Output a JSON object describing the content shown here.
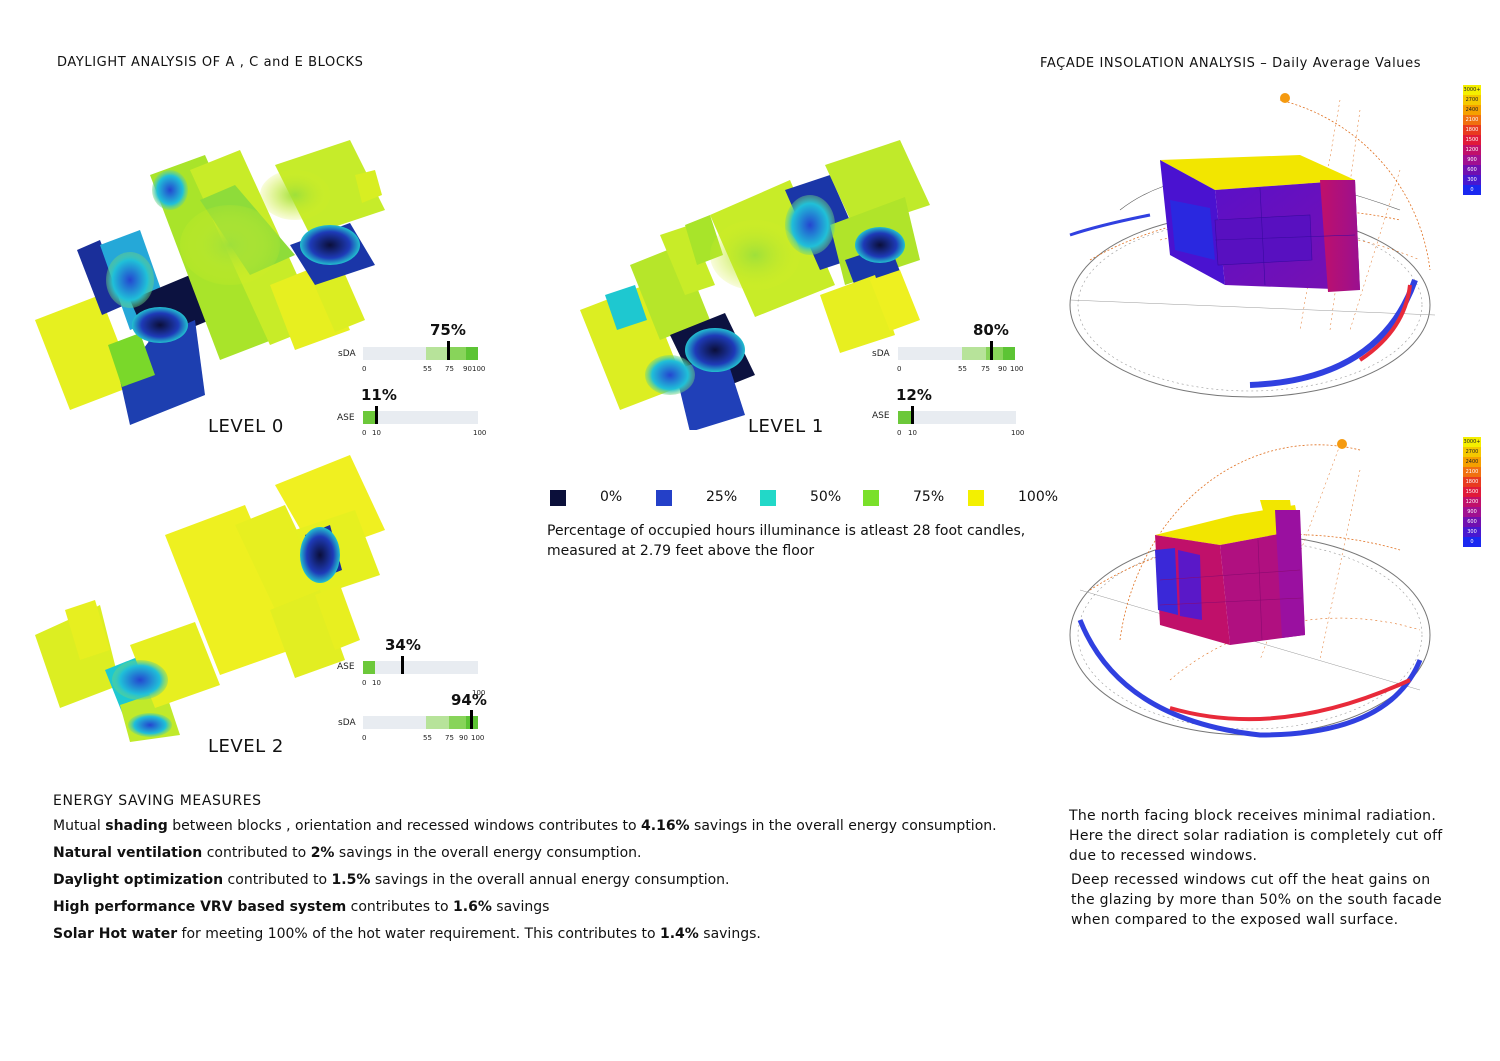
{
  "header": {
    "left_title": "DAYLIGHT ANALYSIS OF A , C and E BLOCKS",
    "right_title": "FAÇADE INSOLATION ANALYSIS – Daily Average Values"
  },
  "levels": [
    {
      "name": "LEVEL 0",
      "sda": {
        "label": "sDA",
        "value_text": "75%",
        "value": 75,
        "ticks": [
          "0",
          "55",
          "75",
          "90",
          "100"
        ]
      },
      "ase": {
        "label": "ASE",
        "value_text": "11%",
        "value": 11,
        "ticks": [
          "0",
          "10",
          "100"
        ]
      }
    },
    {
      "name": "LEVEL 1",
      "sda": {
        "label": "sDA",
        "value_text": "80%",
        "value": 80,
        "ticks": [
          "0",
          "55",
          "75",
          "90",
          "100"
        ]
      },
      "ase": {
        "label": "ASE",
        "value_text": "12%",
        "value": 12,
        "ticks": [
          "0",
          "10",
          "100"
        ]
      }
    },
    {
      "name": "LEVEL 2",
      "ase": {
        "label": "ASE",
        "value_text": "34%",
        "value": 34,
        "ticks": [
          "0",
          "10",
          "100"
        ]
      },
      "sda": {
        "label": "sDA",
        "value_text": "94%",
        "value": 94,
        "ticks": [
          "0",
          "55",
          "75",
          "90",
          "100"
        ]
      }
    }
  ],
  "legend": {
    "items": [
      {
        "label": "0%",
        "color": "#0b0f3a"
      },
      {
        "label": "25%",
        "color": "#2440c8"
      },
      {
        "label": "50%",
        "color": "#22d8c8"
      },
      {
        "label": "75%",
        "color": "#7ae02a"
      },
      {
        "label": "100%",
        "color": "#f3f000"
      }
    ],
    "caption_line1": "Percentage of occupied hours illuminance is atleast 28 foot candles,",
    "caption_line2": "measured at 2.79 feet above the floor"
  },
  "insolation_scale": [
    "3000+",
    "2700",
    "2400",
    "2100",
    "1800",
    "1500",
    "1200",
    "900",
    "600",
    "300",
    "0"
  ],
  "energy": {
    "heading": "ENERGY SAVING MEASURES",
    "l1_a": "Mutual ",
    "l1_b": "shading",
    "l1_c": " between blocks , orientation and recessed windows contributes to ",
    "l1_d": "4.16%",
    "l1_e": " savings in the overall energy consumption.",
    "l2_a": "Natural ventilation",
    "l2_b": " contributed to ",
    "l2_c": "2%",
    "l2_d": " savings in the overall energy consumption.",
    "l3_a": "Daylight optimization",
    "l3_b": " contributed to ",
    "l3_c": "1.5%",
    "l3_d": " savings in the overall annual energy consumption.",
    "l4_a": "High performance VRV based system",
    "l4_b": "  contributes to ",
    "l4_c": "1.6%",
    "l4_d": " savings",
    "l5_a": "Solar Hot water",
    "l5_b": " for meeting 100% of the hot water requirement. This contributes to ",
    "l5_c": "1.4%",
    "l5_d": " savings."
  },
  "notes": {
    "n1_l1": "The  north facing block  receives minimal radiation.",
    "n1_l2": "Here the direct  solar  radiation is  completely cut off",
    "n1_l3": "due to recessed windows.",
    "n2_l1": "Deep recessed windows cut off the heat gains on",
    "n2_l2": "the glazing by more than 50% on the south facade",
    "n2_l3": "when compared to the exposed wall surface."
  }
}
